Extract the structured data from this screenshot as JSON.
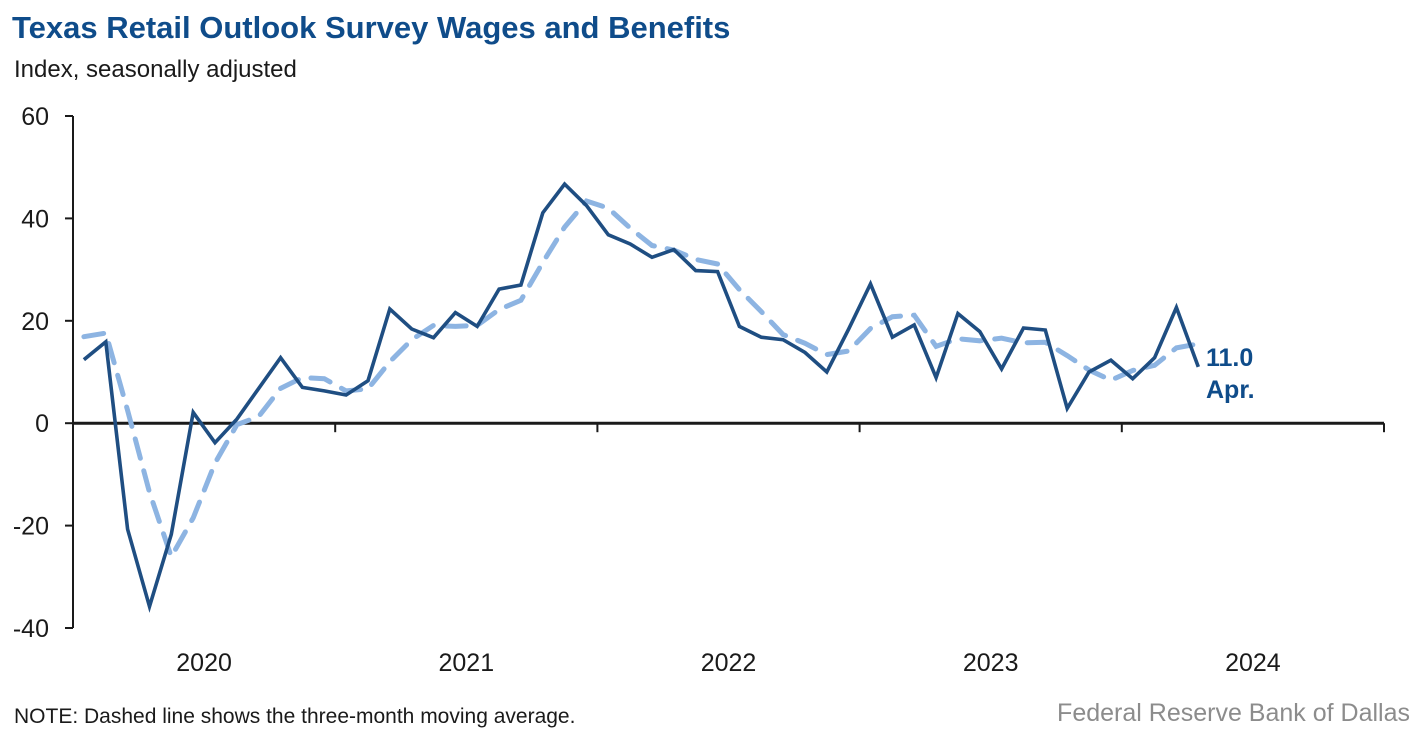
{
  "header": {
    "title": "Texas Retail Outlook Survey Wages and Benefits",
    "subtitle": "Index, seasonally adjusted"
  },
  "footer": {
    "note": "NOTE: Dashed line shows the three-month moving average.",
    "source": "Federal Reserve Bank of Dallas"
  },
  "colors": {
    "solid_series": "#1f4e82",
    "dashed_series": "#8db4e2",
    "axis": "#1a1a1a",
    "title": "#0f4c8a"
  },
  "chart_data": {
    "type": "line",
    "title": "Texas Retail Outlook Survey Wages and Benefits",
    "ylabel": "Index, seasonally adjusted",
    "xlabel": "",
    "ylim": [
      -40,
      60
    ],
    "yticks": [
      60,
      40,
      20,
      0,
      -20,
      -40
    ],
    "ytick_labels": [
      "60",
      "40",
      "20",
      "0",
      "-20",
      "-40"
    ],
    "xtick_labels": [
      "2020",
      "2021",
      "2022",
      "2023",
      "2024"
    ],
    "x_start": "Jan 2020",
    "x_end": "Apr 2024",
    "grid": false,
    "legend": "none",
    "series": [
      {
        "name": "Wages and benefits index",
        "style": "solid",
        "values": [
          12.4,
          15.9,
          -20.7,
          -35.8,
          -21.7,
          2.1,
          -3.8,
          0.8,
          6.8,
          12.8,
          7.0,
          6.3,
          5.5,
          8.3,
          22.3,
          18.4,
          16.7,
          21.6,
          18.9,
          26.2,
          27.0,
          41.1,
          46.7,
          42.5,
          36.8,
          35.0,
          32.4,
          33.9,
          29.8,
          29.6,
          18.9,
          16.8,
          16.3,
          13.8,
          10.0,
          18.4,
          27.2,
          16.8,
          19.2,
          8.9,
          21.4,
          17.9,
          10.6,
          18.6,
          18.2,
          2.9,
          10.0,
          12.3,
          8.7,
          12.8,
          22.6,
          11.0
        ]
      },
      {
        "name": "Three-month moving average",
        "style": "dashed",
        "values": [
          16.9,
          17.6,
          2.5,
          -13.5,
          -26.1,
          -18.5,
          -7.8,
          -0.3,
          1.3,
          6.8,
          8.9,
          8.7,
          6.3,
          6.7,
          12.0,
          16.3,
          19.1,
          18.9,
          19.1,
          22.2,
          24.0,
          31.4,
          38.3,
          43.4,
          42.0,
          38.1,
          34.7,
          33.8,
          32.0,
          31.1,
          26.1,
          21.8,
          17.3,
          15.6,
          13.4,
          14.1,
          18.5,
          20.8,
          21.1,
          15.0,
          16.5,
          16.1,
          16.6,
          15.7,
          15.8,
          13.2,
          10.4,
          8.4,
          10.3,
          11.3,
          14.7,
          15.5
        ]
      }
    ],
    "annotations": [
      {
        "value_label": "11.0",
        "month_label": "Apr."
      }
    ]
  }
}
